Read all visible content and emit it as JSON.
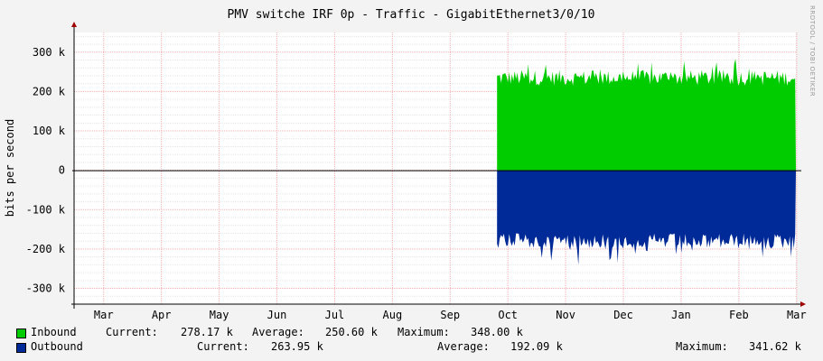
{
  "chart_data": {
    "type": "area",
    "title": "PMV switche IRF 0p - Traffic - GigabitEthernet3/0/10",
    "ylabel": "bits per second",
    "xlabel": "",
    "x_ticks": [
      "Mar",
      "Apr",
      "May",
      "Jun",
      "Jul",
      "Aug",
      "Sep",
      "Oct",
      "Nov",
      "Dec",
      "Jan",
      "Feb",
      "Mar"
    ],
    "y_ticks": [
      {
        "value": 300000,
        "label": "300 k"
      },
      {
        "value": 200000,
        "label": "200 k"
      },
      {
        "value": 100000,
        "label": "100 k"
      },
      {
        "value": 0,
        "label": "0"
      },
      {
        "value": -100000,
        "label": "-100 k"
      },
      {
        "value": -200000,
        "label": "-200 k"
      },
      {
        "value": -300000,
        "label": "-300 k"
      }
    ],
    "ylim": [
      -340000,
      350000
    ],
    "grid": true,
    "series": [
      {
        "name": "Inbound",
        "color": "#00cc00",
        "direction": "positive",
        "data_start": "Oct",
        "typical": 235000,
        "current": "278.17 k",
        "average": "250.60 k",
        "maximum": "348.00 k"
      },
      {
        "name": "Outbound",
        "color": "#002a97",
        "direction": "negative",
        "data_start": "Oct",
        "typical": 180000,
        "current": "263.95 k",
        "average": "192.09 k",
        "maximum": "341.62 k"
      }
    ]
  },
  "legend": {
    "current_label": "Current:",
    "average_label": "Average:",
    "maximum_label": "Maximum:"
  },
  "watermark": "RRDTOOL / TOBI OETIKER"
}
